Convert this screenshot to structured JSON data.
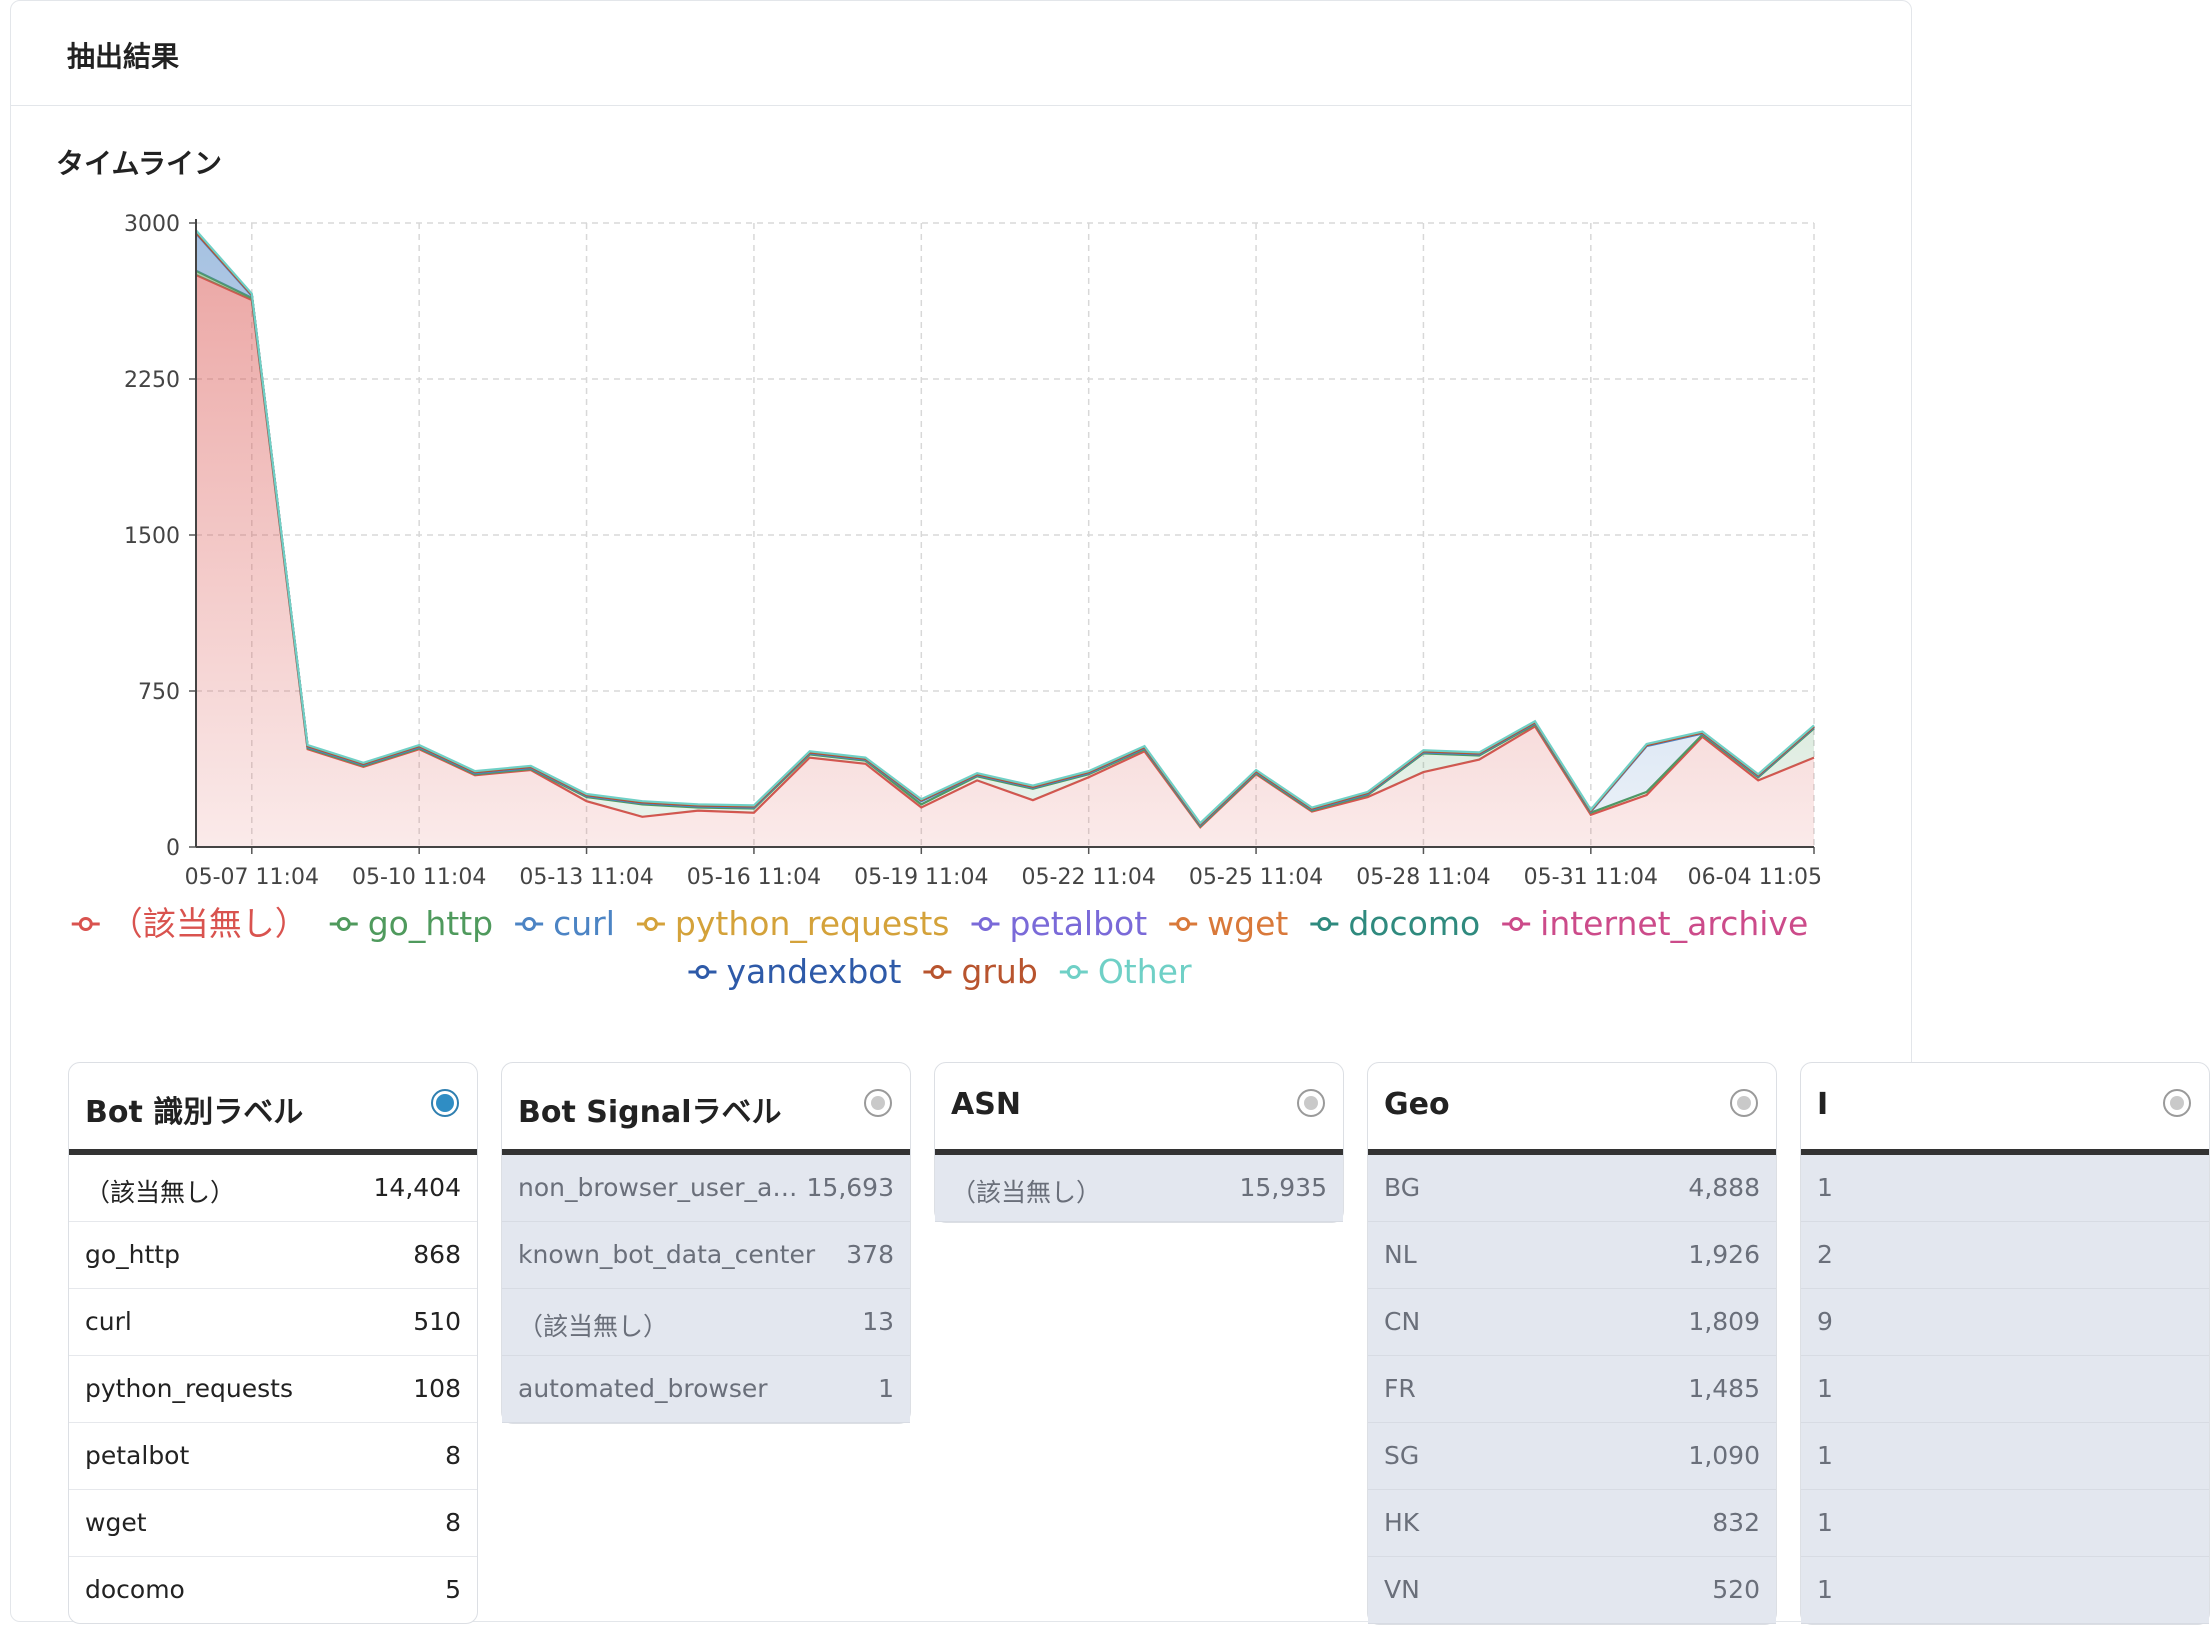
{
  "panel": {
    "title": "抽出結果"
  },
  "timeline": {
    "title": "タイムライン"
  },
  "chart_data": {
    "type": "area",
    "stacked": true,
    "y_ticks": [
      "0",
      "750",
      "1500",
      "2250",
      "3000"
    ],
    "ylim": [
      0,
      3000
    ],
    "x_tick_labels": [
      "05-07 11:04",
      "05-10 11:04",
      "05-13 11:04",
      "05-16 11:04",
      "05-19 11:04",
      "05-22 11:04",
      "05-25 11:04",
      "05-28 11:04",
      "05-31 11:04",
      "06-04 11:05"
    ],
    "grid": true,
    "legend_position": "bottom",
    "series": [
      {
        "name": "（該当無し）",
        "color": "#d9534f",
        "values": [
          2750,
          2630,
          470,
          385,
          470,
          345,
          370,
          220,
          145,
          175,
          165,
          430,
          400,
          190,
          320,
          225,
          335,
          460,
          95,
          350,
          170,
          240,
          360,
          420,
          580,
          155,
          250,
          530,
          320,
          430
        ]
      },
      {
        "name": "go_http",
        "color": "#4f9a5d",
        "values": [
          20,
          10,
          5,
          5,
          5,
          5,
          5,
          20,
          60,
          15,
          20,
          15,
          15,
          15,
          20,
          55,
          15,
          10,
          5,
          5,
          5,
          10,
          90,
          20,
          10,
          10,
          15,
          10,
          15,
          140
        ]
      },
      {
        "name": "curl",
        "color": "#4c84c4",
        "values": [
          180,
          10,
          5,
          5,
          5,
          5,
          5,
          5,
          5,
          5,
          5,
          5,
          5,
          15,
          5,
          5,
          5,
          5,
          5,
          5,
          5,
          5,
          5,
          5,
          5,
          5,
          220,
          5,
          5,
          5
        ]
      },
      {
        "name": "python_requests",
        "color": "#d4a23a",
        "values": [
          5,
          5,
          5,
          5,
          5,
          5,
          5,
          5,
          5,
          5,
          5,
          5,
          5,
          5,
          5,
          5,
          5,
          5,
          5,
          5,
          5,
          5,
          5,
          5,
          5,
          5,
          5,
          5,
          5,
          5
        ]
      },
      {
        "name": "petalbot",
        "color": "#7a6ad8",
        "values": [
          0,
          0,
          0,
          0,
          0,
          0,
          0,
          0,
          0,
          0,
          0,
          0,
          0,
          0,
          0,
          0,
          0,
          0,
          0,
          0,
          0,
          0,
          0,
          0,
          0,
          0,
          0,
          0,
          0,
          0
        ]
      },
      {
        "name": "wget",
        "color": "#d9793a",
        "values": [
          0,
          0,
          0,
          0,
          0,
          0,
          0,
          0,
          0,
          0,
          0,
          0,
          0,
          0,
          0,
          0,
          0,
          0,
          0,
          0,
          0,
          0,
          0,
          0,
          0,
          0,
          0,
          0,
          0,
          0
        ]
      },
      {
        "name": "docomo",
        "color": "#2f8a7e",
        "values": [
          0,
          0,
          0,
          0,
          0,
          0,
          0,
          0,
          0,
          0,
          0,
          0,
          0,
          0,
          0,
          0,
          0,
          0,
          0,
          0,
          0,
          0,
          0,
          0,
          0,
          0,
          0,
          0,
          0,
          0
        ]
      },
      {
        "name": "internet_archive",
        "color": "#cc4b8a",
        "values": [
          0,
          0,
          0,
          0,
          0,
          0,
          0,
          0,
          0,
          0,
          0,
          0,
          0,
          0,
          0,
          0,
          0,
          0,
          0,
          0,
          0,
          0,
          0,
          0,
          0,
          0,
          0,
          0,
          0,
          0
        ]
      },
      {
        "name": "yandexbot",
        "color": "#2e5aa8",
        "values": [
          0,
          0,
          0,
          0,
          0,
          0,
          0,
          0,
          0,
          0,
          0,
          0,
          0,
          0,
          0,
          0,
          0,
          0,
          0,
          0,
          0,
          0,
          0,
          0,
          0,
          0,
          0,
          0,
          0,
          0
        ]
      },
      {
        "name": "grub",
        "color": "#b8542e",
        "values": [
          0,
          0,
          0,
          0,
          0,
          0,
          0,
          0,
          0,
          0,
          0,
          0,
          0,
          0,
          0,
          0,
          0,
          0,
          0,
          0,
          0,
          0,
          0,
          0,
          0,
          0,
          0,
          0,
          0,
          0
        ]
      },
      {
        "name": "Other",
        "color": "#6fd0c6",
        "values": [
          10,
          5,
          5,
          5,
          5,
          5,
          5,
          5,
          5,
          5,
          5,
          5,
          5,
          5,
          5,
          5,
          5,
          5,
          5,
          5,
          5,
          5,
          5,
          5,
          5,
          5,
          5,
          5,
          5,
          5
        ]
      }
    ]
  },
  "cards": [
    {
      "title": "Bot 識別ラベル",
      "selected": true,
      "rows": [
        {
          "label": "（該当無し）",
          "count": "14,404"
        },
        {
          "label": "go_http",
          "count": "868"
        },
        {
          "label": "curl",
          "count": "510"
        },
        {
          "label": "python_requests",
          "count": "108"
        },
        {
          "label": "petalbot",
          "count": "8"
        },
        {
          "label": "wget",
          "count": "8"
        },
        {
          "label": "docomo",
          "count": "5"
        }
      ]
    },
    {
      "title": "Bot Signalラベル",
      "selected": false,
      "rows": [
        {
          "label": "non_browser_user_a…",
          "count": "15,693"
        },
        {
          "label": "known_bot_data_center",
          "count": "378"
        },
        {
          "label": "（該当無し）",
          "count": "13"
        },
        {
          "label": "automated_browser",
          "count": "1"
        }
      ]
    },
    {
      "title": "ASN",
      "selected": false,
      "rows": [
        {
          "label": "（該当無し）",
          "count": "15,935"
        }
      ]
    },
    {
      "title": "Geo",
      "selected": false,
      "rows": [
        {
          "label": "BG",
          "count": "4,888"
        },
        {
          "label": "NL",
          "count": "1,926"
        },
        {
          "label": "CN",
          "count": "1,809"
        },
        {
          "label": "FR",
          "count": "1,485"
        },
        {
          "label": "SG",
          "count": "1,090"
        },
        {
          "label": "HK",
          "count": "832"
        },
        {
          "label": "VN",
          "count": "520"
        }
      ]
    },
    {
      "title": "I",
      "selected": false,
      "rows": [
        {
          "label": "1",
          "count": ""
        },
        {
          "label": "2",
          "count": ""
        },
        {
          "label": "9",
          "count": ""
        },
        {
          "label": "1",
          "count": ""
        },
        {
          "label": "1",
          "count": ""
        },
        {
          "label": "1",
          "count": ""
        },
        {
          "label": "1",
          "count": ""
        }
      ]
    }
  ]
}
